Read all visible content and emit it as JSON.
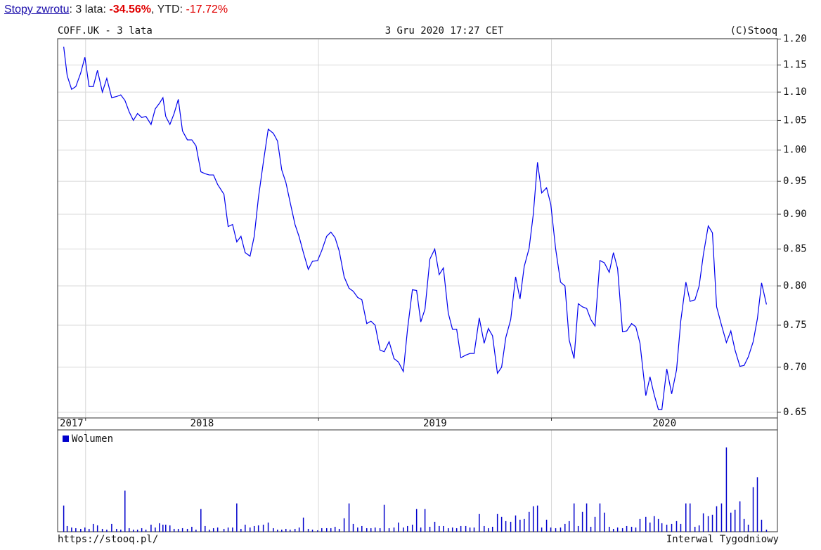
{
  "header": {
    "link": "Stopy zwrotu",
    "period": ": 3 lata: ",
    "return_3y": "-34.56%",
    "ytd_label": ", YTD: ",
    "return_ytd": "-17.72%"
  },
  "chart_data": {
    "type": "line",
    "title": "COFF.UK - 3 lata",
    "subtitle": "3 Gru 2020 17:27 CET",
    "copyright": "(C)Stooq",
    "footer_left": "https://stooq.pl/",
    "footer_right": "Interwal Tygodniowy",
    "color": "#0000ee",
    "log_scale": true,
    "grid": true,
    "xlim": [
      2017.88,
      2020.97
    ],
    "xticks": [
      2017,
      2018,
      2019,
      2020
    ],
    "ylim": [
      0.644,
      1.201
    ],
    "yticks": [
      {
        "value": 1.2,
        "label": "1.20"
      },
      1.15,
      {
        "value": 1.1,
        "label": "1.10"
      },
      1.05,
      {
        "value": 1.0,
        "label": "1.00"
      },
      0.95,
      {
        "value": 0.9,
        "label": "0.90"
      },
      0.85,
      {
        "value": 0.8,
        "label": "0.80"
      },
      0.75,
      {
        "value": 0.7,
        "label": "0.70"
      },
      0.65
    ],
    "x": [
      2017.906,
      2017.921,
      2017.94,
      2017.958,
      2017.979,
      2017.997,
      2018.015,
      2018.033,
      2018.051,
      2018.072,
      2018.091,
      2018.112,
      2018.133,
      2018.151,
      2018.169,
      2018.187,
      2018.205,
      2018.223,
      2018.241,
      2018.259,
      2018.281,
      2018.299,
      2018.317,
      2018.332,
      2018.344,
      2018.362,
      2018.38,
      2018.398,
      2018.416,
      2018.437,
      2018.456,
      2018.474,
      2018.495,
      2018.513,
      2018.531,
      2018.549,
      2018.567,
      2018.594,
      2018.612,
      2018.631,
      2018.649,
      2018.667,
      2018.685,
      2018.706,
      2018.724,
      2018.742,
      2018.763,
      2018.784,
      2018.806,
      2018.824,
      2018.842,
      2018.86,
      2018.878,
      2018.899,
      2018.917,
      2018.935,
      2018.956,
      2018.974,
      2018.996,
      2019.014,
      2019.035,
      2019.053,
      2019.071,
      2019.089,
      2019.11,
      2019.131,
      2019.149,
      2019.168,
      2019.186,
      2019.207,
      2019.225,
      2019.243,
      2019.264,
      2019.282,
      2019.303,
      2019.324,
      2019.343,
      2019.364,
      2019.382,
      2019.403,
      2019.421,
      2019.439,
      2019.457,
      2019.478,
      2019.499,
      2019.518,
      2019.536,
      2019.557,
      2019.575,
      2019.593,
      2019.611,
      2019.632,
      2019.65,
      2019.668,
      2019.69,
      2019.711,
      2019.729,
      2019.747,
      2019.768,
      2019.786,
      2019.804,
      2019.825,
      2019.846,
      2019.865,
      2019.883,
      2019.904,
      2019.922,
      2019.94,
      2019.958,
      2019.979,
      2019.997,
      2020.018,
      2020.039,
      2020.058,
      2020.076,
      2020.097,
      2020.115,
      2020.133,
      2020.151,
      2020.169,
      2020.187,
      2020.208,
      2020.227,
      2020.248,
      2020.266,
      2020.284,
      2020.305,
      2020.323,
      2020.344,
      2020.362,
      2020.38,
      2020.405,
      2020.423,
      2020.441,
      2020.459,
      2020.474,
      2020.495,
      2020.516,
      2020.537,
      2020.555,
      2020.577,
      2020.595,
      2020.616,
      2020.634,
      2020.652,
      2020.673,
      2020.691,
      2020.709,
      2020.73,
      2020.751,
      2020.77,
      2020.788,
      2020.809,
      2020.827,
      2020.845,
      2020.866,
      2020.884,
      2020.902,
      2020.923
    ],
    "values": [
      1.185,
      1.13,
      1.105,
      1.11,
      1.135,
      1.165,
      1.11,
      1.11,
      1.14,
      1.1,
      1.125,
      1.09,
      1.092,
      1.095,
      1.085,
      1.065,
      1.05,
      1.062,
      1.055,
      1.057,
      1.043,
      1.07,
      1.08,
      1.09,
      1.057,
      1.043,
      1.062,
      1.087,
      1.032,
      1.017,
      1.017,
      1.007,
      0.965,
      0.962,
      0.96,
      0.96,
      0.945,
      0.93,
      0.882,
      0.885,
      0.86,
      0.868,
      0.845,
      0.84,
      0.868,
      0.925,
      0.98,
      1.035,
      1.028,
      1.015,
      0.968,
      0.948,
      0.918,
      0.885,
      0.867,
      0.845,
      0.822,
      0.833,
      0.834,
      0.848,
      0.868,
      0.874,
      0.866,
      0.847,
      0.812,
      0.797,
      0.793,
      0.785,
      0.782,
      0.752,
      0.755,
      0.75,
      0.72,
      0.718,
      0.73,
      0.71,
      0.706,
      0.695,
      0.745,
      0.795,
      0.794,
      0.754,
      0.77,
      0.836,
      0.85,
      0.815,
      0.824,
      0.765,
      0.745,
      0.745,
      0.711,
      0.714,
      0.716,
      0.716,
      0.759,
      0.728,
      0.746,
      0.737,
      0.693,
      0.7,
      0.735,
      0.757,
      0.812,
      0.783,
      0.826,
      0.851,
      0.9,
      0.98,
      0.932,
      0.94,
      0.915,
      0.85,
      0.805,
      0.8,
      0.732,
      0.71,
      0.777,
      0.773,
      0.771,
      0.757,
      0.749,
      0.834,
      0.831,
      0.818,
      0.845,
      0.823,
      0.742,
      0.743,
      0.752,
      0.748,
      0.728,
      0.668,
      0.689,
      0.669,
      0.653,
      0.653,
      0.698,
      0.67,
      0.697,
      0.755,
      0.805,
      0.78,
      0.782,
      0.8,
      0.842,
      0.883,
      0.873,
      0.773,
      0.75,
      0.729,
      0.743,
      0.72,
      0.701,
      0.702,
      0.712,
      0.73,
      0.758,
      0.804,
      0.776
    ],
    "volume": {
      "name": "Wolumen",
      "color": "#0000cc",
      "values": [
        37,
        8,
        6,
        5,
        4,
        6,
        4,
        11,
        9,
        4,
        3,
        11,
        4,
        3,
        58,
        5,
        3,
        3,
        5,
        3,
        10,
        6,
        12,
        10,
        10,
        9,
        4,
        4,
        5,
        4,
        7,
        3,
        32,
        8,
        3,
        5,
        6,
        4,
        6,
        6,
        40,
        4,
        10,
        6,
        8,
        9,
        10,
        13,
        5,
        3,
        3,
        4,
        3,
        4,
        6,
        20,
        4,
        3,
        2,
        5,
        5,
        5,
        7,
        4,
        19,
        40,
        11,
        6,
        8,
        5,
        5,
        6,
        5,
        38,
        5,
        6,
        13,
        6,
        8,
        10,
        32,
        6,
        32,
        7,
        14,
        8,
        8,
        5,
        6,
        5,
        8,
        8,
        6,
        6,
        25,
        8,
        5,
        7,
        25,
        21,
        15,
        14,
        23,
        17,
        18,
        28,
        36,
        37,
        6,
        17,
        6,
        5,
        6,
        11,
        15,
        40,
        8,
        28,
        40,
        7,
        21,
        40,
        27,
        7,
        4,
        6,
        5,
        8,
        7,
        6,
        18,
        21,
        13,
        22,
        18,
        12,
        10,
        11,
        15,
        11,
        40,
        40,
        7,
        9,
        26,
        22,
        24,
        36,
        40,
        119,
        27,
        31,
        43,
        18,
        10,
        63,
        77,
        17,
        3
      ]
    }
  }
}
